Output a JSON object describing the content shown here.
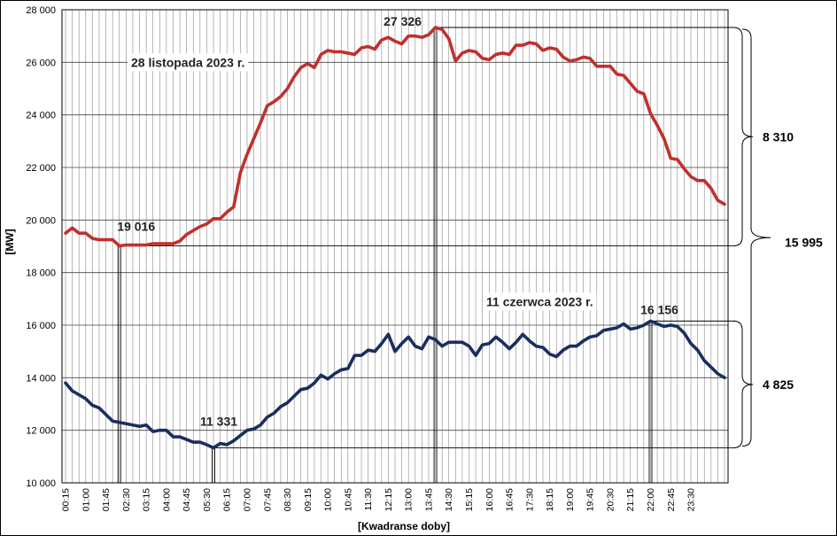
{
  "chart_data": {
    "type": "line",
    "xlabel": "[Kwadranse doby]",
    "ylabel": "[MW]",
    "ylim": [
      10000,
      28000
    ],
    "yticks": [
      10000,
      12000,
      14000,
      16000,
      18000,
      20000,
      22000,
      24000,
      26000,
      28000
    ],
    "ytick_labels": [
      "10 000",
      "12 000",
      "14 000",
      "16 000",
      "18 000",
      "20 000",
      "22 000",
      "24 000",
      "26 000",
      "28 000"
    ],
    "x_tick_labels": [
      "00:15",
      "01:00",
      "01:45",
      "02:30",
      "03:15",
      "04:00",
      "04:45",
      "05:30",
      "06:15",
      "07:00",
      "07:45",
      "08:30",
      "09:15",
      "10:00",
      "10:45",
      "11:30",
      "12:15",
      "13:00",
      "13:45",
      "14:30",
      "15:15",
      "16:00",
      "16:45",
      "17:30",
      "18:15",
      "19:00",
      "19:45",
      "20:30",
      "21:15",
      "22:00",
      "22:45",
      "23:30"
    ],
    "grid": true,
    "series": [
      {
        "name": "28 listopada 2023 r.",
        "color": "#c0302e",
        "values": [
          19500,
          19700,
          19500,
          19500,
          19300,
          19250,
          19250,
          19250,
          19016,
          19050,
          19050,
          19050,
          19050,
          19100,
          19100,
          19100,
          19100,
          19200,
          19450,
          19600,
          19750,
          19850,
          20050,
          20050,
          20300,
          20500,
          21800,
          22500,
          23100,
          23700,
          24350,
          24500,
          24700,
          25000,
          25450,
          25800,
          25950,
          25800,
          26300,
          26450,
          26400,
          26400,
          26350,
          26300,
          26550,
          26600,
          26500,
          26850,
          26950,
          26800,
          26700,
          27000,
          27000,
          26950,
          27050,
          27326,
          27250,
          26900,
          26050,
          26350,
          26450,
          26400,
          26150,
          26100,
          26300,
          26350,
          26300,
          26650,
          26650,
          26750,
          26700,
          26450,
          26550,
          26500,
          26200,
          26050,
          26100,
          26200,
          26150,
          25850,
          25850,
          25850,
          25550,
          25500,
          25200,
          24900,
          24800,
          24050,
          23600,
          23100,
          22350,
          22300,
          21950,
          21650,
          21500,
          21500,
          21200,
          20750,
          20600
        ]
      },
      {
        "name": "11 czerwca 2023 r.",
        "color": "#1a2e5e",
        "values": [
          13800,
          13500,
          13350,
          13200,
          12950,
          12850,
          12600,
          12350,
          12300,
          12250,
          12200,
          12150,
          12200,
          11950,
          12000,
          12000,
          11750,
          11750,
          11650,
          11550,
          11550,
          11450,
          11331,
          11500,
          11450,
          11600,
          11800,
          12000,
          12050,
          12200,
          12500,
          12650,
          12900,
          13050,
          13300,
          13550,
          13600,
          13800,
          14100,
          13950,
          14150,
          14300,
          14350,
          14850,
          14850,
          15050,
          15000,
          15300,
          15650,
          15000,
          15300,
          15550,
          15200,
          15100,
          15550,
          15450,
          15200,
          15350,
          15350,
          15350,
          15200,
          14850,
          15250,
          15300,
          15550,
          15350,
          15100,
          15350,
          15650,
          15400,
          15200,
          15150,
          14900,
          14800,
          15050,
          15200,
          15200,
          15400,
          15550,
          15600,
          15800,
          15850,
          15900,
          16050,
          15850,
          15900,
          16000,
          16156,
          16050,
          15950,
          16000,
          15950,
          15700,
          15300,
          15050,
          14650,
          14400,
          14150,
          14000
        ]
      }
    ],
    "annotations": {
      "series1_label": "28 listopada 2023 r.",
      "series2_label": "11 czerwca 2023 r.",
      "max1": {
        "label": "27 326",
        "value": 27326
      },
      "min1": {
        "label": "19 016",
        "value": 19016
      },
      "max2": {
        "label": "16 156",
        "value": 16156
      },
      "min2": {
        "label": "11 331",
        "value": 11331
      },
      "range1": "8 310",
      "range2": "4 825",
      "range_total": "15 995"
    }
  }
}
